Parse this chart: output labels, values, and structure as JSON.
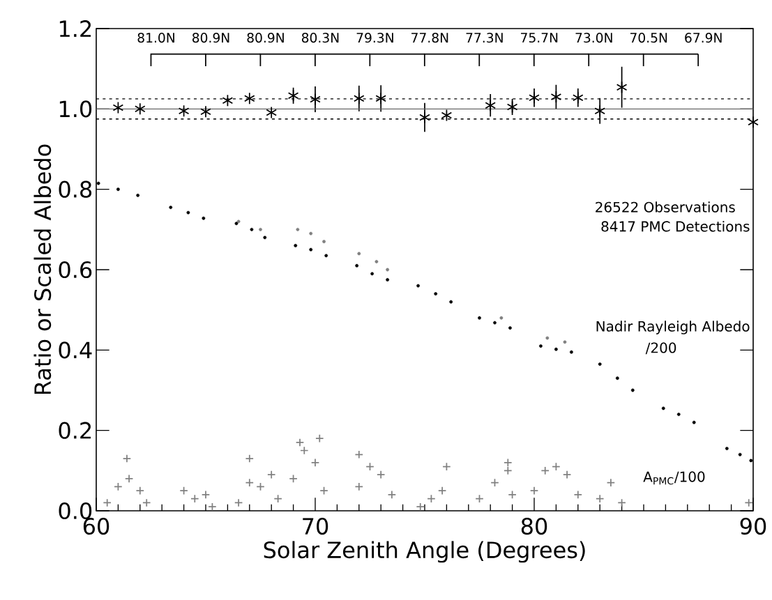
{
  "chart_data": {
    "type": "scatter",
    "xlabel": "Solar Zenith Angle (Degrees)",
    "ylabel": "Ratio or Scaled Albedo",
    "xlim": [
      60,
      90
    ],
    "xticks": [
      60,
      70,
      80,
      90
    ],
    "ylim": [
      0,
      1.2
    ],
    "yticks": [
      {
        "value": 0,
        "label": "0.0"
      },
      {
        "value": 0.2,
        "label": "0.2"
      },
      {
        "value": 0.4,
        "label": "0.4"
      },
      {
        "value": 0.6,
        "label": "0.6"
      },
      {
        "value": 0.8,
        "label": "0.8"
      },
      {
        "value": 1.0,
        "label": "1.0"
      },
      {
        "value": 1.2,
        "label": "1.2"
      }
    ],
    "grid": false,
    "series": [
      {
        "color": "#808080",
        "marker": "cross",
        "x": [
          60.5,
          61,
          61.5,
          62,
          62.3,
          61.4,
          64,
          64.5,
          65,
          65.3,
          66.5,
          67,
          67.5,
          68,
          68.3,
          67,
          69,
          69.5,
          70,
          70.4,
          69.3,
          70.2,
          72,
          72.5,
          73,
          73.5,
          72,
          74.8,
          75.3,
          75.8,
          76,
          77.5,
          78.2,
          78.8,
          79,
          78.8,
          80,
          80.5,
          81,
          81.5,
          82,
          83,
          83.5,
          84,
          89.8
        ],
        "values": [
          0.02,
          0.06,
          0.08,
          0.05,
          0.02,
          0.13,
          0.05,
          0.03,
          0.04,
          0.01,
          0.02,
          0.07,
          0.06,
          0.09,
          0.03,
          0.13,
          0.08,
          0.15,
          0.12,
          0.05,
          0.17,
          0.18,
          0.06,
          0.11,
          0.09,
          0.04,
          0.14,
          0.01,
          0.03,
          0.05,
          0.11,
          0.03,
          0.07,
          0.1,
          0.04,
          0.12,
          0.05,
          0.1,
          0.11,
          0.09,
          0.04,
          0.03,
          0.07,
          0.02,
          0.02
        ]
      },
      {
        "color": "#808080",
        "marker": "circle",
        "x": [
          66.5,
          67.5,
          69.2,
          69.8,
          70.4,
          72.0,
          72.8,
          73.3,
          78.5,
          80.6,
          81.4
        ],
        "values": [
          0.72,
          0.7,
          0.7,
          0.69,
          0.67,
          0.64,
          0.62,
          0.6,
          0.48,
          0.43,
          0.42
        ]
      },
      {
        "color": "#000000",
        "marker": "circle",
        "x": [
          60.1,
          61.0,
          61.9,
          63.4,
          64.2,
          64.9,
          66.4,
          67.1,
          67.7,
          69.1,
          69.8,
          70.5,
          71.9,
          72.6,
          73.3,
          74.7,
          75.5,
          76.2,
          77.5,
          78.2,
          78.9,
          80.3,
          81.0,
          81.7,
          83.0,
          83.8,
          84.5,
          85.9,
          86.6,
          87.3,
          88.8,
          89.4,
          89.9
        ],
        "values": [
          0.815,
          0.8,
          0.785,
          0.755,
          0.742,
          0.728,
          0.715,
          0.7,
          0.68,
          0.66,
          0.65,
          0.635,
          0.61,
          0.59,
          0.575,
          0.56,
          0.54,
          0.52,
          0.48,
          0.468,
          0.455,
          0.41,
          0.402,
          0.395,
          0.365,
          0.33,
          0.3,
          0.255,
          0.24,
          0.22,
          0.155,
          0.14,
          0.125
        ]
      },
      {
        "color": "#000000",
        "x": [
          61,
          62,
          64,
          65,
          66,
          67,
          68,
          69,
          70,
          72,
          73,
          75,
          76,
          78,
          79,
          80,
          81,
          82,
          83,
          84,
          90
        ],
        "values": [
          1.003,
          1.0,
          0.995,
          0.993,
          1.021,
          1.026,
          0.991,
          1.033,
          1.024,
          1.026,
          1.026,
          0.979,
          0.984,
          1.009,
          1.005,
          1.028,
          1.03,
          1.028,
          0.995,
          1.054,
          0.967
        ],
        "errors": [
          null,
          null,
          null,
          null,
          null,
          null,
          null,
          0.02,
          0.032,
          0.032,
          0.033,
          0.036,
          null,
          0.028,
          0.02,
          0.023,
          0.03,
          0.023,
          0.032,
          0.051,
          null
        ]
      }
    ],
    "ref_lines": [
      {
        "axis": "y",
        "value": 1.0,
        "color": "#606060",
        "line_style": "solid"
      },
      {
        "axis": "y",
        "value": 1.025,
        "color": "#000000",
        "line_style": "dotted"
      },
      {
        "axis": "y",
        "value": 0.975,
        "color": "#000000",
        "line_style": "dotted"
      }
    ],
    "annotations": [
      "81.0N",
      "80.9N",
      "80.9N",
      "80.3N",
      "79.3N",
      "77.8N",
      "77.3N",
      "75.7N",
      "73.0N",
      "70.5N",
      "67.9N",
      "26522 Observations",
      "8417 PMC Detections",
      "Nadir Rayleigh Albedo",
      "/200",
      "A$_{PMC}$/100"
    ]
  }
}
